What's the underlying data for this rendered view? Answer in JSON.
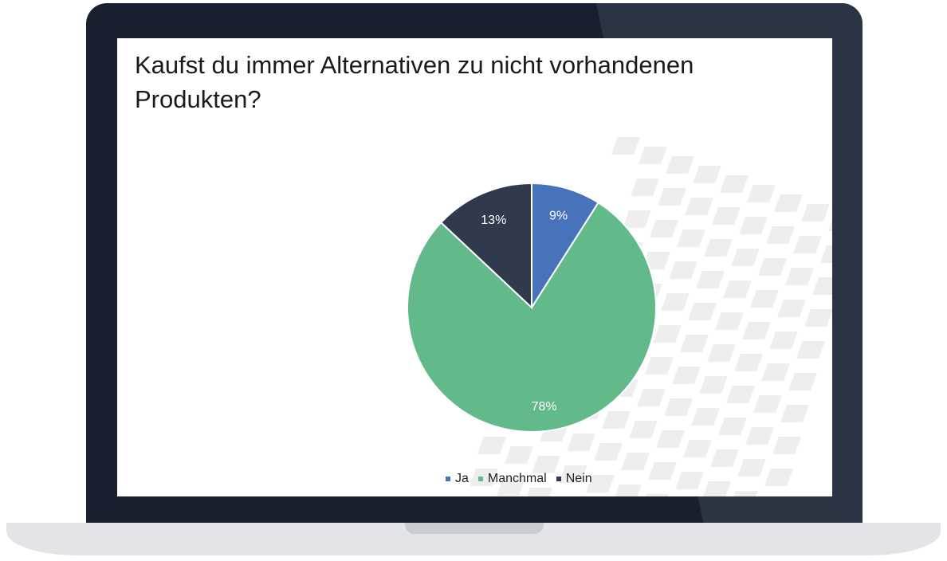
{
  "slide": {
    "title": "Kaufst du immer Alternativen zu nicht vorhandenen Produkten?"
  },
  "chart_data": {
    "type": "pie",
    "title": "",
    "categories": [
      "Ja",
      "Manchmal",
      "Nein"
    ],
    "values": [
      9,
      78,
      13
    ],
    "labels": [
      "9%",
      "78%",
      "13%"
    ],
    "colors": [
      "#4673b9",
      "#62b98a",
      "#2f3b4d"
    ],
    "legend_position": "bottom",
    "legend": [
      "Ja",
      "Manchmal",
      "Nein"
    ]
  }
}
